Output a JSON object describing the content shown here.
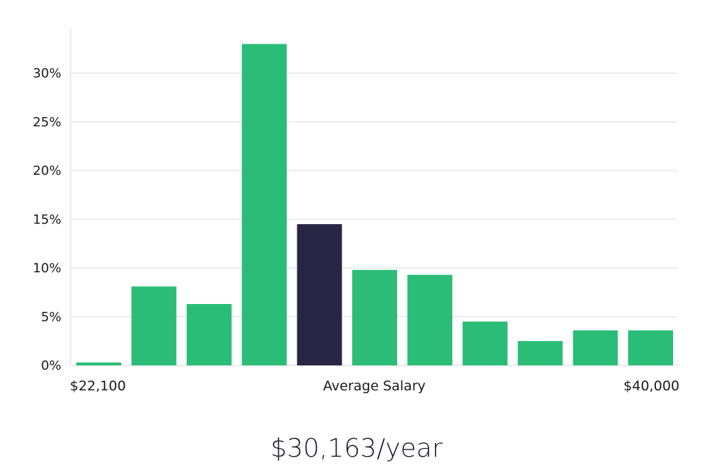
{
  "chart_data": {
    "type": "bar",
    "values": [
      0.3,
      8.1,
      6.3,
      33.0,
      14.5,
      9.8,
      9.3,
      4.5,
      2.5,
      3.6,
      3.6
    ],
    "highlight_index": 4,
    "ylim": [
      0,
      35
    ],
    "yticks": [
      0,
      5,
      10,
      15,
      20,
      25,
      30
    ],
    "ytick_labels": [
      "0%",
      "5%",
      "10%",
      "15%",
      "20%",
      "25%",
      "30%"
    ],
    "x_labels": {
      "left": "$22,100",
      "center": "Average Salary",
      "right": "$40,000"
    },
    "grid": true,
    "colors": {
      "bar": "#2bbd77",
      "highlight": "#282544",
      "grid": "#dddddd",
      "axis": "#d6d6d6"
    }
  },
  "salary_text": "$30,163/year"
}
